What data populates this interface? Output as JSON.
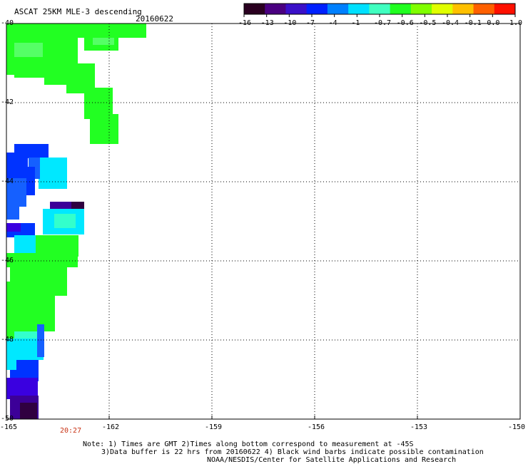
{
  "header": {
    "title": "ASCAT 25KM MLE-3 descending",
    "date": "20160622"
  },
  "colorbar": {
    "labels": [
      "-16",
      "-13",
      "-10",
      "-7",
      "-4",
      "-1",
      "-0.7",
      "-0.6",
      "-0.5",
      "-0.4",
      "-0.1",
      "0.0",
      "1.0"
    ],
    "colors": [
      "#2a0020",
      "#4a0080",
      "#3a10c8",
      "#0020ff",
      "#0080ff",
      "#00e0ff",
      "#40ffc0",
      "#20ff20",
      "#80ff00",
      "#e0ff00",
      "#ffc000",
      "#ff6000",
      "#ff1000"
    ]
  },
  "axes": {
    "lat_ticks": [
      "-40",
      "-42",
      "-44",
      "-46",
      "-48",
      "-50"
    ],
    "lon_ticks": [
      "-165",
      "-162",
      "-159",
      "-156",
      "-153",
      "-150"
    ],
    "lat_range": [
      -50,
      -40
    ],
    "lon_range": [
      -165,
      -150
    ]
  },
  "time_label": "20:27",
  "notes": [
    "Note: 1) Times are GMT 2)Times along bottom correspond to measurement at -45S",
    "3)Data buffer is 22 hrs from 20160622 4) Black wind barbs indicate possible contamination",
    "NOAA/NESDIS/Center for Satellite Applications and Research"
  ],
  "swath_colors": {
    "green": "#22ff22",
    "lime": "#55ff66",
    "cyan": "#00e8ff",
    "aqua": "#33ffcc",
    "blue": "#0033ff",
    "mid_blue": "#1560ff",
    "indigo": "#3a00e0",
    "violet": "#3c0098",
    "dark": "#300040"
  }
}
